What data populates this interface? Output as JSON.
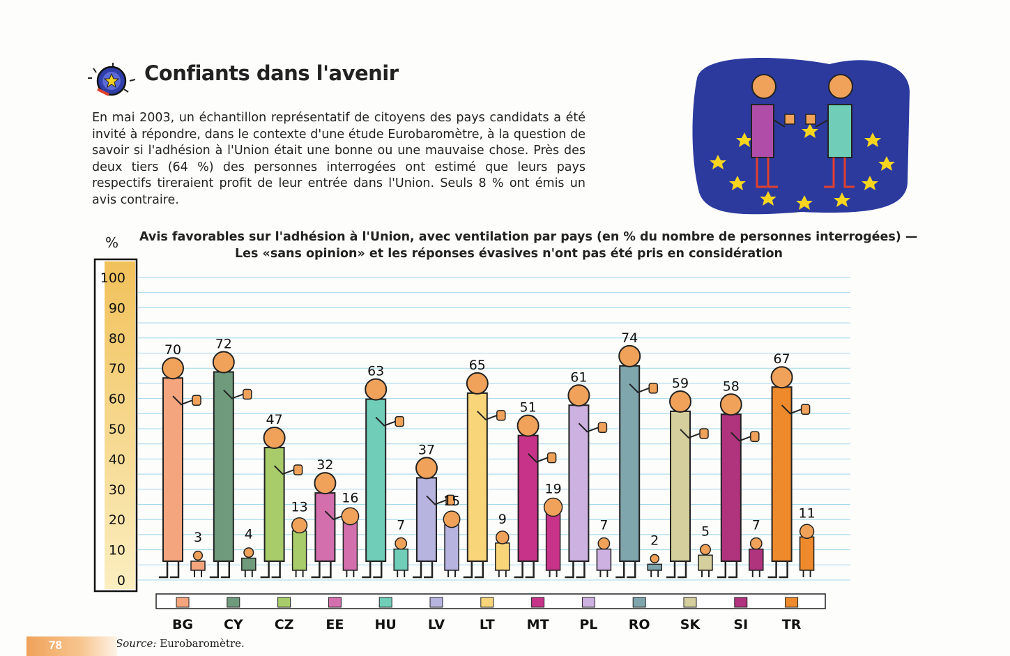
{
  "page": {
    "title": "Confiants dans l'avenir",
    "intro": "En mai 2003, un échantillon représentatif de citoyens des pays candidats a été invité à répondre, dans le contexte d'une étude Eurobaromètre, à la question de savoir si l'adhésion à l'Union était une bonne ou une mauvaise chose. Près des deux tiers (64 %) des personnes interrogées ont estimé que leurs pays respectifs tireraient profit de leur entrée dans l'Union. Seuls 8 % ont émis un avis contraire.",
    "source_label": "Source:",
    "source_value": " Eurobaromètre.",
    "page_number": "78"
  },
  "chart_data": {
    "type": "bar",
    "title_line1": "Avis favorables sur l'adhésion à l'Union, avec ventilation par pays (en % du nombre de personnes interrogées) —",
    "title_line2": "Les «sans opinion» et les réponses évasives n'ont pas été pris en considération",
    "ylabel": "%",
    "ylim": [
      0,
      100
    ],
    "yticks": [
      0,
      10,
      20,
      30,
      40,
      50,
      60,
      70,
      80,
      90,
      100
    ],
    "grid": true,
    "categories": [
      "BG",
      "CY",
      "CZ",
      "EE",
      "HU",
      "LV",
      "LT",
      "MT",
      "PL",
      "RO",
      "SK",
      "SI",
      "TR"
    ],
    "series": [
      {
        "values": [
          70,
          72,
          47,
          32,
          63,
          37,
          65,
          51,
          61,
          74,
          59,
          58,
          67
        ]
      },
      {
        "values": [
          3,
          4,
          13,
          16,
          7,
          15,
          9,
          19,
          7,
          2,
          5,
          7,
          11
        ]
      }
    ],
    "colors": [
      "#f4a57e",
      "#6f9a7c",
      "#a8cc6a",
      "#d46fae",
      "#6fcdb8",
      "#b8b4e0",
      "#f9d57a",
      "#c8338a",
      "#cdb1e0",
      "#7ea6ac",
      "#d4cf9c",
      "#b0337e",
      "#ee8a2c"
    ]
  }
}
